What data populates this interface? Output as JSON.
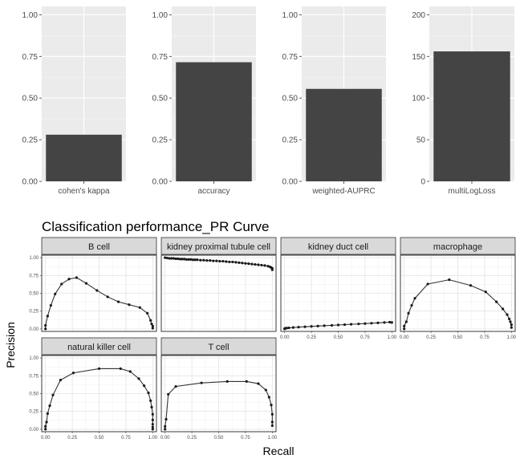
{
  "chart_data": [
    {
      "type": "bar",
      "categories": [
        "cohen's kappa"
      ],
      "values": [
        0.28
      ],
      "ylim": [
        0,
        1.05
      ],
      "yticks": [
        "0.00",
        "0.25",
        "0.50",
        "0.75",
        "1.00"
      ],
      "ytick_values": [
        0,
        0.25,
        0.5,
        0.75,
        1.0
      ],
      "grid": true
    },
    {
      "type": "bar",
      "categories": [
        "accuracy"
      ],
      "values": [
        0.715
      ],
      "ylim": [
        0,
        1.05
      ],
      "yticks": [
        "0.00",
        "0.25",
        "0.50",
        "0.75",
        "1.00"
      ],
      "ytick_values": [
        0,
        0.25,
        0.5,
        0.75,
        1.0
      ],
      "grid": true
    },
    {
      "type": "bar",
      "categories": [
        "weighted-AUPRC"
      ],
      "values": [
        0.555
      ],
      "ylim": [
        0,
        1.05
      ],
      "yticks": [
        "0.00",
        "0.25",
        "0.50",
        "0.75",
        "1.00"
      ],
      "ytick_values": [
        0,
        0.25,
        0.5,
        0.75,
        1.0
      ],
      "grid": true
    },
    {
      "type": "bar",
      "categories": [
        "multiLogLoss"
      ],
      "values": [
        156
      ],
      "ylim": [
        0,
        210
      ],
      "yticks": [
        "0",
        "50",
        "100",
        "150",
        "200"
      ],
      "ytick_values": [
        0,
        50,
        100,
        150,
        200
      ],
      "grid": true
    },
    {
      "type": "line",
      "title": "Classification performance_PR Curve",
      "xlabel": "Recall",
      "ylabel": "Precision",
      "xlim": [
        0,
        1
      ],
      "ylim": [
        0,
        1
      ],
      "xticks": [
        "0.00",
        "0.25",
        "0.50",
        "0.75",
        "1.00"
      ],
      "yticks": [
        "0.00",
        "0.25",
        "0.50",
        "0.75",
        "1.00"
      ],
      "tick_values": [
        0,
        0.25,
        0.5,
        0.75,
        1.0
      ],
      "grid": true,
      "facets": [
        {
          "name": "B cell",
          "points": [
            [
              0.0,
              0.0
            ],
            [
              0.0,
              0.05
            ],
            [
              0.02,
              0.18
            ],
            [
              0.05,
              0.33
            ],
            [
              0.09,
              0.49
            ],
            [
              0.15,
              0.63
            ],
            [
              0.22,
              0.7
            ],
            [
              0.29,
              0.72
            ],
            [
              0.38,
              0.64
            ],
            [
              0.48,
              0.54
            ],
            [
              0.58,
              0.45
            ],
            [
              0.68,
              0.38
            ],
            [
              0.78,
              0.34
            ],
            [
              0.88,
              0.3
            ],
            [
              0.95,
              0.22
            ],
            [
              0.98,
              0.12
            ],
            [
              0.99,
              0.07
            ],
            [
              1.0,
              0.04
            ],
            [
              1.0,
              0.01
            ]
          ]
        },
        {
          "name": "kidney proximal tubule cell",
          "points": [
            [
              0.0,
              1.0
            ],
            [
              0.02,
              0.995
            ],
            [
              0.04,
              0.99
            ],
            [
              0.06,
              0.99
            ],
            [
              0.08,
              0.99
            ],
            [
              0.1,
              0.985
            ],
            [
              0.12,
              0.985
            ],
            [
              0.14,
              0.98
            ],
            [
              0.16,
              0.98
            ],
            [
              0.18,
              0.98
            ],
            [
              0.2,
              0.975
            ],
            [
              0.22,
              0.975
            ],
            [
              0.24,
              0.975
            ],
            [
              0.26,
              0.97
            ],
            [
              0.28,
              0.97
            ],
            [
              0.3,
              0.97
            ],
            [
              0.33,
              0.965
            ],
            [
              0.36,
              0.965
            ],
            [
              0.39,
              0.96
            ],
            [
              0.42,
              0.96
            ],
            [
              0.45,
              0.955
            ],
            [
              0.48,
              0.955
            ],
            [
              0.51,
              0.95
            ],
            [
              0.54,
              0.95
            ],
            [
              0.57,
              0.945
            ],
            [
              0.6,
              0.94
            ],
            [
              0.63,
              0.94
            ],
            [
              0.66,
              0.935
            ],
            [
              0.69,
              0.93
            ],
            [
              0.72,
              0.925
            ],
            [
              0.75,
              0.92
            ],
            [
              0.78,
              0.915
            ],
            [
              0.81,
              0.91
            ],
            [
              0.84,
              0.905
            ],
            [
              0.87,
              0.9
            ],
            [
              0.9,
              0.895
            ],
            [
              0.93,
              0.89
            ],
            [
              0.96,
              0.88
            ],
            [
              0.98,
              0.87
            ],
            [
              0.99,
              0.86
            ],
            [
              1.0,
              0.85
            ],
            [
              1.0,
              0.83
            ]
          ]
        },
        {
          "name": "kidney duct cell",
          "points": [
            [
              0.0,
              0.0
            ],
            [
              0.0,
              0.005
            ],
            [
              0.01,
              0.01
            ],
            [
              0.02,
              0.012
            ],
            [
              0.04,
              0.015
            ],
            [
              0.08,
              0.02
            ],
            [
              0.13,
              0.025
            ],
            [
              0.19,
              0.03
            ],
            [
              0.25,
              0.035
            ],
            [
              0.31,
              0.04
            ],
            [
              0.37,
              0.045
            ],
            [
              0.44,
              0.05
            ],
            [
              0.5,
              0.055
            ],
            [
              0.56,
              0.06
            ],
            [
              0.62,
              0.065
            ],
            [
              0.69,
              0.07
            ],
            [
              0.75,
              0.075
            ],
            [
              0.81,
              0.08
            ],
            [
              0.87,
              0.085
            ],
            [
              0.93,
              0.09
            ],
            [
              0.98,
              0.095
            ],
            [
              1.0,
              0.09
            ]
          ]
        },
        {
          "name": "macrophage",
          "points": [
            [
              0.0,
              0.0
            ],
            [
              0.0,
              0.04
            ],
            [
              0.02,
              0.1
            ],
            [
              0.04,
              0.22
            ],
            [
              0.07,
              0.33
            ],
            [
              0.1,
              0.43
            ],
            [
              0.22,
              0.63
            ],
            [
              0.42,
              0.69
            ],
            [
              0.62,
              0.61
            ],
            [
              0.76,
              0.52
            ],
            [
              0.86,
              0.38
            ],
            [
              0.92,
              0.28
            ],
            [
              0.96,
              0.2
            ],
            [
              0.98,
              0.14
            ],
            [
              0.99,
              0.1
            ],
            [
              1.0,
              0.06
            ],
            [
              1.0,
              0.02
            ]
          ]
        },
        {
          "name": "natural killer cell",
          "points": [
            [
              0.0,
              0.0
            ],
            [
              0.0,
              0.04
            ],
            [
              0.01,
              0.1
            ],
            [
              0.02,
              0.22
            ],
            [
              0.04,
              0.33
            ],
            [
              0.07,
              0.48
            ],
            [
              0.14,
              0.69
            ],
            [
              0.26,
              0.79
            ],
            [
              0.5,
              0.85
            ],
            [
              0.7,
              0.85
            ],
            [
              0.79,
              0.81
            ],
            [
              0.87,
              0.71
            ],
            [
              0.92,
              0.61
            ],
            [
              0.96,
              0.51
            ],
            [
              0.98,
              0.4
            ],
            [
              0.99,
              0.31
            ],
            [
              1.0,
              0.21
            ],
            [
              1.0,
              0.13
            ],
            [
              1.0,
              0.07
            ],
            [
              1.0,
              0.03
            ],
            [
              1.0,
              0.0
            ]
          ]
        },
        {
          "name": "T cell",
          "points": [
            [
              0.0,
              0.0
            ],
            [
              0.0,
              0.04
            ],
            [
              0.01,
              0.14
            ],
            [
              0.03,
              0.49
            ],
            [
              0.1,
              0.6
            ],
            [
              0.34,
              0.65
            ],
            [
              0.58,
              0.67
            ],
            [
              0.76,
              0.67
            ],
            [
              0.87,
              0.64
            ],
            [
              0.94,
              0.55
            ],
            [
              0.97,
              0.45
            ],
            [
              0.99,
              0.34
            ],
            [
              1.0,
              0.21
            ],
            [
              1.0,
              0.1
            ],
            [
              1.0,
              0.05
            ]
          ]
        }
      ]
    }
  ]
}
